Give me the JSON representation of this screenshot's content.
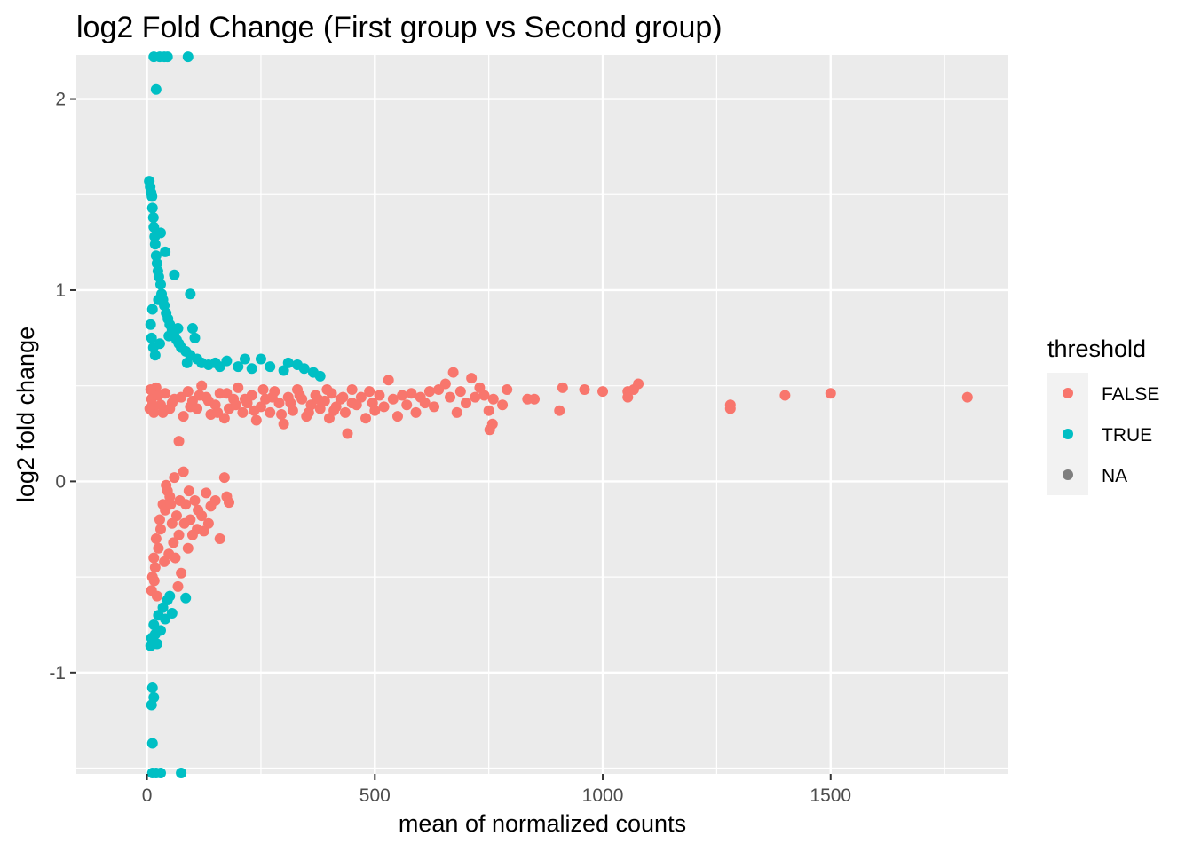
{
  "chart_data": {
    "type": "scatter",
    "title": "log2 Fold Change (First group vs Second group)",
    "xlabel": "mean of normalized counts",
    "ylabel": "log2 fold change",
    "xlim": [
      -155,
      1890
    ],
    "ylim": [
      -1.53,
      2.23
    ],
    "x_ticks": [
      0,
      500,
      1000,
      1500
    ],
    "x_tick_labels": [
      "0",
      "500",
      "1000",
      "1500"
    ],
    "y_ticks": [
      -1,
      0,
      1,
      2
    ],
    "y_tick_labels": [
      "-1",
      "0",
      "1",
      "2"
    ],
    "grid": true,
    "background": "#ebebeb",
    "legend": {
      "title": "threshold",
      "placement": "right",
      "entries": [
        {
          "label": "FALSE",
          "color": "#f8766d"
        },
        {
          "label": "TRUE",
          "color": "#00bfc4"
        },
        {
          "label": "NA",
          "color": "#7f7f7f"
        }
      ]
    },
    "series": [
      {
        "name": "FALSE",
        "color": "#f8766d",
        "points": [
          [
            1800,
            0.44
          ],
          [
            1500,
            0.46
          ],
          [
            1400,
            0.45
          ],
          [
            1280,
            0.4
          ],
          [
            1280,
            0.38
          ],
          [
            1078,
            0.51
          ],
          [
            1068,
            0.48
          ],
          [
            1055,
            0.47
          ],
          [
            1055,
            0.44
          ],
          [
            1000,
            0.47
          ],
          [
            960,
            0.48
          ],
          [
            912,
            0.49
          ],
          [
            905,
            0.37
          ],
          [
            850,
            0.43
          ],
          [
            835,
            0.43
          ],
          [
            790,
            0.48
          ],
          [
            780,
            0.4
          ],
          [
            760,
            0.43
          ],
          [
            758,
            0.3
          ],
          [
            752,
            0.27
          ],
          [
            750,
            0.37
          ],
          [
            740,
            0.45
          ],
          [
            730,
            0.49
          ],
          [
            720,
            0.44
          ],
          [
            712,
            0.54
          ],
          [
            700,
            0.41
          ],
          [
            688,
            0.47
          ],
          [
            680,
            0.36
          ],
          [
            672,
            0.57
          ],
          [
            665,
            0.44
          ],
          [
            655,
            0.51
          ],
          [
            640,
            0.48
          ],
          [
            630,
            0.39
          ],
          [
            620,
            0.47
          ],
          [
            610,
            0.41
          ],
          [
            600,
            0.44
          ],
          [
            590,
            0.36
          ],
          [
            580,
            0.46
          ],
          [
            570,
            0.4
          ],
          [
            560,
            0.45
          ],
          [
            550,
            0.34
          ],
          [
            540,
            0.43
          ],
          [
            530,
            0.53
          ],
          [
            520,
            0.39
          ],
          [
            510,
            0.45
          ],
          [
            500,
            0.37
          ],
          [
            495,
            0.41
          ],
          [
            488,
            0.47
          ],
          [
            480,
            0.33
          ],
          [
            470,
            0.44
          ],
          [
            460,
            0.4
          ],
          [
            450,
            0.48
          ],
          [
            440,
            0.25
          ],
          [
            435,
            0.36
          ],
          [
            425,
            0.43
          ],
          [
            415,
            0.39
          ],
          [
            405,
            0.46
          ],
          [
            400,
            0.33
          ],
          [
            390,
            0.42
          ],
          [
            380,
            0.38
          ],
          [
            370,
            0.45
          ],
          [
            360,
            0.4
          ],
          [
            350,
            0.34
          ],
          [
            340,
            0.43
          ],
          [
            330,
            0.48
          ],
          [
            320,
            0.37
          ],
          [
            310,
            0.44
          ],
          [
            300,
            0.3
          ],
          [
            290,
            0.41
          ],
          [
            280,
            0.47
          ],
          [
            270,
            0.36
          ],
          [
            260,
            0.43
          ],
          [
            250,
            0.39
          ],
          [
            240,
            0.32
          ],
          [
            230,
            0.45
          ],
          [
            220,
            0.41
          ],
          [
            210,
            0.36
          ],
          [
            200,
            0.49
          ],
          [
            190,
            0.43
          ],
          [
            180,
            0.38
          ],
          [
            170,
            0.33
          ],
          [
            160,
            0.46
          ],
          [
            150,
            0.4
          ],
          [
            140,
            0.35
          ],
          [
            130,
            0.44
          ],
          [
            120,
            0.5
          ],
          [
            110,
            0.38
          ],
          [
            100,
            0.42
          ],
          [
            90,
            0.47
          ],
          [
            80,
            0.34
          ],
          [
            70,
            0.21
          ],
          [
            60,
            0.43
          ],
          [
            50,
            0.38
          ],
          [
            40,
            0.46
          ],
          [
            30,
            0.4
          ],
          [
            20,
            0.49
          ],
          [
            15,
            0.36
          ],
          [
            10,
            0.43
          ],
          [
            8,
            0.48
          ],
          [
            6,
            0.38
          ],
          [
            450,
            0.41
          ],
          [
            430,
            0.44
          ],
          [
            410,
            0.37
          ],
          [
            395,
            0.48
          ],
          [
            375,
            0.43
          ],
          [
            355,
            0.36
          ],
          [
            335,
            0.45
          ],
          [
            315,
            0.41
          ],
          [
            295,
            0.35
          ],
          [
            275,
            0.44
          ],
          [
            255,
            0.48
          ],
          [
            235,
            0.37
          ],
          [
            215,
            0.43
          ],
          [
            195,
            0.4
          ],
          [
            175,
            0.46
          ],
          [
            155,
            0.36
          ],
          [
            135,
            0.42
          ],
          [
            115,
            0.45
          ],
          [
            95,
            0.39
          ],
          [
            75,
            0.44
          ],
          [
            55,
            0.41
          ],
          [
            35,
            0.36
          ],
          [
            25,
            0.45
          ],
          [
            12,
            0.4
          ],
          [
            80,
            0.05
          ],
          [
            60,
            0.02
          ],
          [
            45,
            -0.05
          ],
          [
            35,
            -0.12
          ],
          [
            28,
            -0.2
          ],
          [
            20,
            -0.3
          ],
          [
            15,
            -0.4
          ],
          [
            12,
            -0.5
          ],
          [
            10,
            -0.57
          ],
          [
            18,
            -0.45
          ],
          [
            25,
            -0.35
          ],
          [
            30,
            -0.25
          ],
          [
            40,
            -0.15
          ],
          [
            50,
            -0.08
          ],
          [
            55,
            -0.22
          ],
          [
            65,
            -0.18
          ],
          [
            70,
            -0.28
          ],
          [
            85,
            -0.12
          ],
          [
            95,
            -0.2
          ],
          [
            105,
            -0.1
          ],
          [
            110,
            -0.25
          ],
          [
            120,
            -0.18
          ],
          [
            130,
            -0.06
          ],
          [
            135,
            -0.22
          ],
          [
            140,
            -0.13
          ],
          [
            150,
            -0.1
          ],
          [
            160,
            -0.3
          ],
          [
            170,
            0.02
          ],
          [
            175,
            -0.08
          ],
          [
            180,
            -0.11
          ],
          [
            38,
            -0.42
          ],
          [
            48,
            -0.38
          ],
          [
            58,
            -0.32
          ],
          [
            68,
            -0.55
          ],
          [
            75,
            -0.48
          ],
          [
            90,
            -0.35
          ],
          [
            100,
            -0.28
          ],
          [
            22,
            -0.6
          ],
          [
            16,
            -0.52
          ],
          [
            42,
            -0.02
          ],
          [
            52,
            -0.12
          ],
          [
            62,
            -0.4
          ],
          [
            72,
            -0.1
          ],
          [
            82,
            -0.22
          ],
          [
            92,
            -0.05
          ],
          [
            112,
            -0.15
          ],
          [
            125,
            -0.26
          ]
        ]
      },
      {
        "name": "TRUE",
        "color": "#00bfc4",
        "points": [
          [
            15,
            2.22
          ],
          [
            28,
            2.22
          ],
          [
            38,
            2.22
          ],
          [
            45,
            2.22
          ],
          [
            90,
            2.22
          ],
          [
            20,
            2.05
          ],
          [
            5,
            1.57
          ],
          [
            7,
            1.54
          ],
          [
            9,
            1.51
          ],
          [
            11,
            1.49
          ],
          [
            12,
            1.43
          ],
          [
            14,
            1.38
          ],
          [
            15,
            1.33
          ],
          [
            17,
            1.28
          ],
          [
            18,
            1.24
          ],
          [
            20,
            1.18
          ],
          [
            22,
            1.14
          ],
          [
            24,
            1.1
          ],
          [
            26,
            1.07
          ],
          [
            30,
            1.03
          ],
          [
            32,
            0.98
          ],
          [
            35,
            0.95
          ],
          [
            38,
            0.92
          ],
          [
            42,
            0.88
          ],
          [
            46,
            0.85
          ],
          [
            50,
            0.82
          ],
          [
            55,
            0.79
          ],
          [
            60,
            0.76
          ],
          [
            65,
            0.74
          ],
          [
            70,
            0.72
          ],
          [
            75,
            0.7
          ],
          [
            85,
            0.68
          ],
          [
            95,
            0.66
          ],
          [
            100,
            0.8
          ],
          [
            110,
            0.64
          ],
          [
            120,
            0.62
          ],
          [
            135,
            0.61
          ],
          [
            150,
            0.62
          ],
          [
            160,
            0.6
          ],
          [
            175,
            0.63
          ],
          [
            200,
            0.6
          ],
          [
            215,
            0.64
          ],
          [
            230,
            0.59
          ],
          [
            250,
            0.64
          ],
          [
            270,
            0.6
          ],
          [
            300,
            0.58
          ],
          [
            310,
            0.62
          ],
          [
            330,
            0.61
          ],
          [
            345,
            0.59
          ],
          [
            365,
            0.57
          ],
          [
            380,
            0.55
          ],
          [
            95,
            0.98
          ],
          [
            60,
            1.08
          ],
          [
            40,
            1.2
          ],
          [
            30,
            1.3
          ],
          [
            25,
            0.95
          ],
          [
            12,
            0.9
          ],
          [
            8,
            0.82
          ],
          [
            10,
            0.75
          ],
          [
            14,
            0.7
          ],
          [
            18,
            0.66
          ],
          [
            28,
            0.72
          ],
          [
            48,
            0.76
          ],
          [
            68,
            0.8
          ],
          [
            88,
            0.62
          ],
          [
            105,
            0.75
          ],
          [
            45,
            -0.62
          ],
          [
            35,
            -0.66
          ],
          [
            25,
            -0.7
          ],
          [
            15,
            -0.75
          ],
          [
            10,
            -0.82
          ],
          [
            8,
            -0.86
          ],
          [
            18,
            -0.8
          ],
          [
            22,
            -0.85
          ],
          [
            30,
            -0.78
          ],
          [
            40,
            -0.72
          ],
          [
            50,
            -0.6
          ],
          [
            55,
            -0.69
          ],
          [
            85,
            -0.61
          ],
          [
            12,
            -1.08
          ],
          [
            15,
            -1.13
          ],
          [
            10,
            -1.17
          ],
          [
            12,
            -1.37
          ],
          [
            12,
            -1.53
          ],
          [
            20,
            -1.53
          ],
          [
            30,
            -1.53
          ],
          [
            75,
            -1.53
          ]
        ]
      }
    ]
  }
}
